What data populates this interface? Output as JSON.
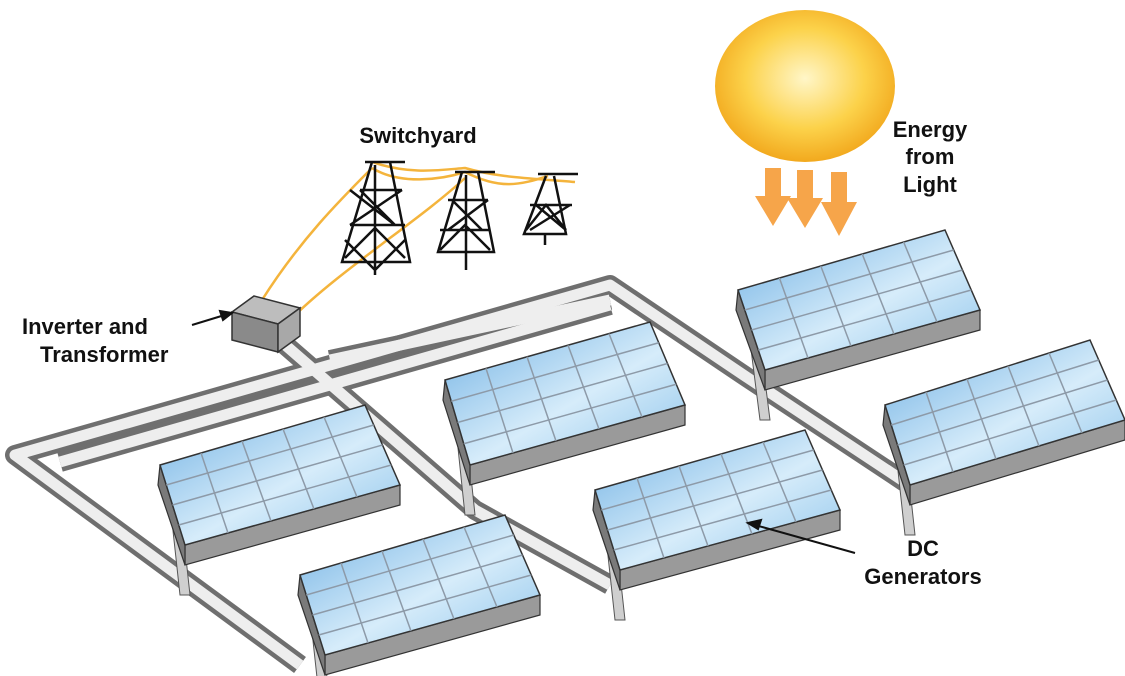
{
  "labels": {
    "switchyard": "Switchyard",
    "energy": [
      "Energy",
      "from",
      "Light"
    ],
    "inverter": [
      "Inverter and",
      "Transformer"
    ],
    "dc": [
      "DC",
      "Generators"
    ]
  }
}
